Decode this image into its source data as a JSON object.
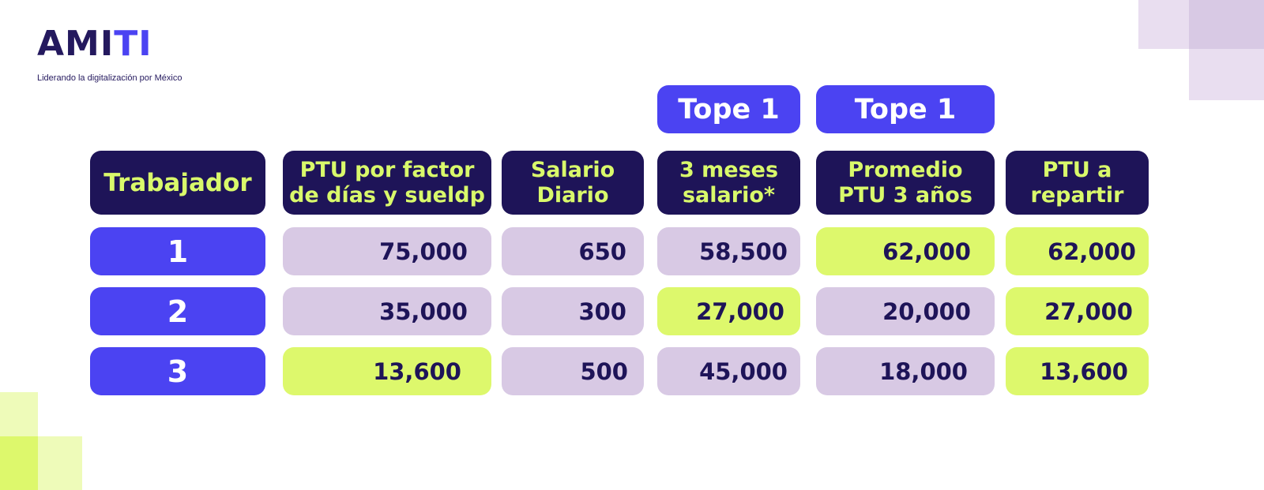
{
  "brand": {
    "logo_text": "AMITI",
    "tagline": "Liderando la digitalización por México",
    "colors": {
      "navy": "#1e1458",
      "blue": "#4b43f2",
      "lime": "#ddf86c",
      "lavender": "#d8c9e4"
    }
  },
  "table": {
    "top_labels": [
      "Tope 1",
      "Tope 1"
    ],
    "headers": [
      "Trabajador",
      "PTU por factor de días y sueldp",
      "Salario Diario",
      "3 meses salario*",
      "Promedio PTU 3 años",
      "PTU a repartir"
    ],
    "rows": [
      {
        "trabajador": "1",
        "values": [
          "75,000",
          "650",
          "58,500",
          "62,000",
          "62,000"
        ],
        "highlight": [
          false,
          false,
          false,
          true,
          true
        ]
      },
      {
        "trabajador": "2",
        "values": [
          "35,000",
          "300",
          "27,000",
          "20,000",
          "27,000"
        ],
        "highlight": [
          false,
          false,
          true,
          false,
          true
        ]
      },
      {
        "trabajador": "3",
        "values": [
          "13,600",
          "500",
          "45,000",
          "18,000",
          "13,600"
        ],
        "highlight": [
          true,
          false,
          false,
          false,
          true
        ]
      }
    ]
  }
}
